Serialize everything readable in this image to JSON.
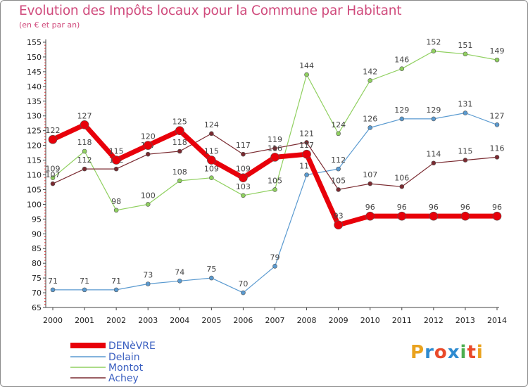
{
  "title": "Evolution des Impôts locaux pour la Commune par Habitant",
  "subtitle": "(en € et par an)",
  "logo": {
    "letters": [
      "P",
      "r",
      "o",
      "x",
      "i",
      "t",
      "i"
    ],
    "colors": [
      "#e9a21e",
      "#2e8bd0",
      "#e94a2a",
      "#2e8bd0",
      "#4caf50",
      "#e94a2a",
      "#e9a21e"
    ]
  },
  "chart_data": {
    "type": "line",
    "title": "Evolution des Impôts locaux pour la Commune par Habitant",
    "subtitle": "(en € et par an)",
    "x": [
      "2000",
      "2001",
      "2002",
      "2003",
      "2004",
      "2005",
      "2006",
      "2007",
      "2008",
      "2009",
      "2010",
      "2011",
      "2012",
      "2013",
      "2014"
    ],
    "ylim": [
      65,
      155
    ],
    "yticks": [
      65,
      70,
      75,
      80,
      85,
      90,
      95,
      100,
      105,
      110,
      115,
      120,
      125,
      130,
      135,
      140,
      145,
      150,
      155
    ],
    "grid": false,
    "legend_position": "bottom-left",
    "series": [
      {
        "name": "Montot",
        "color": "#90d060",
        "values": [
          109,
          118,
          98,
          100,
          108,
          109,
          103,
          105,
          144,
          124,
          142,
          146,
          152,
          151,
          149
        ]
      },
      {
        "name": "Delain",
        "color": "#5a9ad0",
        "values": [
          71,
          71,
          71,
          73,
          74,
          75,
          70,
          79,
          110,
          112,
          126,
          129,
          129,
          131,
          127
        ]
      },
      {
        "name": "Achey",
        "color": "#7a2a30",
        "values": [
          107,
          112,
          112,
          117,
          118,
          124,
          117,
          119,
          121,
          105,
          107,
          106,
          114,
          115,
          116
        ]
      },
      {
        "name": "DENèVRE",
        "color": "#e8000a",
        "values": [
          122,
          127,
          115,
          120,
          125,
          115,
          109,
          116,
          117,
          93,
          96,
          96,
          96,
          96,
          96
        ]
      }
    ],
    "legend": [
      "DENèVRE",
      "Delain",
      "Montot",
      "Achey"
    ]
  }
}
